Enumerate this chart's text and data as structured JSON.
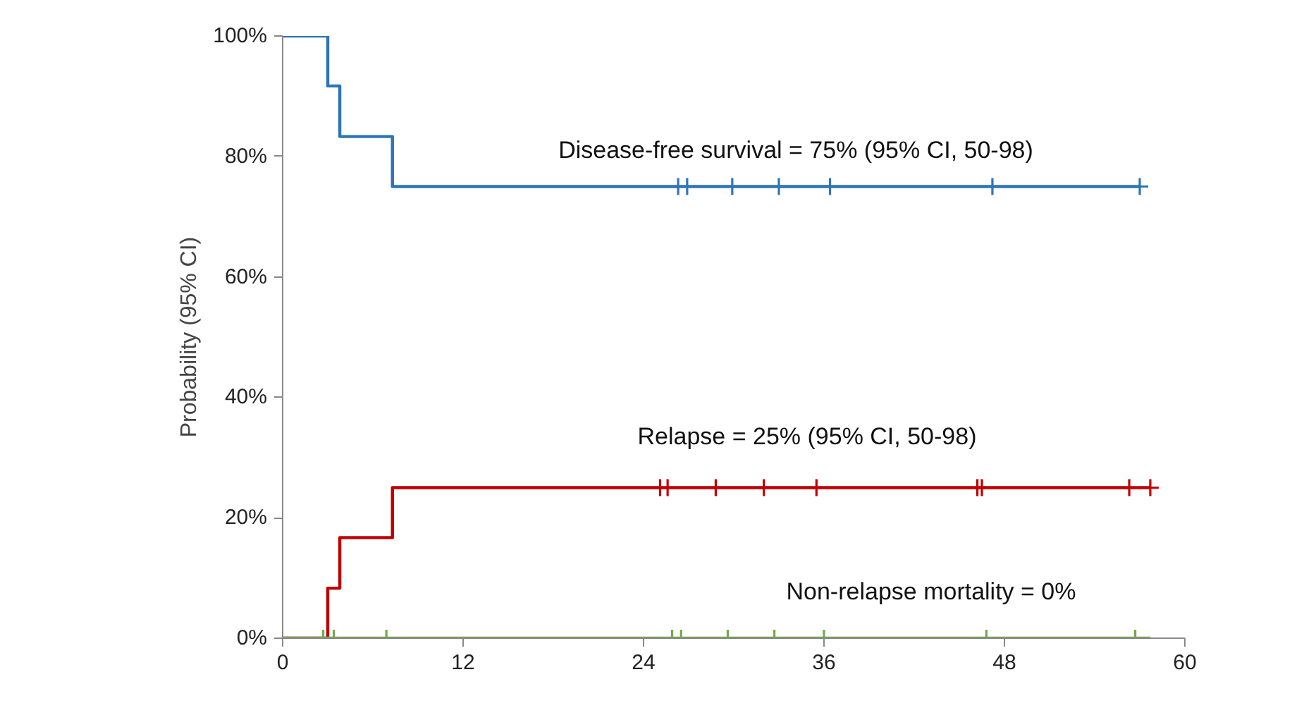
{
  "chart_data": {
    "type": "step",
    "ylabel": "Probability (95% CI)",
    "xlim": [
      0,
      60
    ],
    "ylim": [
      0,
      100
    ],
    "xticks": [
      0,
      12,
      24,
      36,
      48,
      60
    ],
    "yticks": [
      {
        "value": 0,
        "label": "0%"
      },
      {
        "value": 20,
        "label": "20%"
      },
      {
        "value": 40,
        "label": "40%"
      },
      {
        "value": 60,
        "label": "60%"
      },
      {
        "value": 80,
        "label": "80%"
      },
      {
        "value": 100,
        "label": "100%"
      }
    ],
    "grid": false,
    "series": [
      {
        "color": "#2e75b6",
        "x": [
          0,
          3,
          3.8,
          7.3,
          57.0
        ],
        "values": [
          100,
          91.7,
          83.3,
          75,
          75
        ]
      },
      {
        "color": "#c00000",
        "x": [
          0,
          3,
          3.8,
          7.3,
          57.7
        ],
        "values": [
          0,
          8.3,
          16.7,
          25,
          25
        ]
      },
      {
        "color": "#70ad47",
        "x": [
          0,
          57.7
        ],
        "values": [
          0,
          0
        ]
      },
      {
        "type": "scatter",
        "marker": "cross",
        "color": "#2e75b6",
        "x": [
          26.3,
          26.9,
          29.9,
          33.0,
          36.4,
          47.2,
          57.0
        ],
        "values": [
          75,
          75,
          75,
          75,
          75,
          75,
          75
        ]
      },
      {
        "type": "scatter",
        "marker": "cross",
        "color": "#c00000",
        "x": [
          25.1,
          25.6,
          28.8,
          32.0,
          35.5,
          46.2,
          46.5,
          56.3,
          57.7
        ],
        "values": [
          25,
          25,
          25,
          25,
          25,
          25,
          25,
          25,
          25
        ]
      },
      {
        "type": "scatter",
        "marker": "cross",
        "color": "#70ad47",
        "x": [
          2.7,
          3.4,
          6.9,
          25.9,
          26.5,
          29.6,
          32.7,
          36.0,
          46.8,
          56.7
        ],
        "values": [
          0,
          0,
          0,
          0,
          0,
          0,
          0,
          0,
          0,
          0
        ]
      }
    ],
    "annotations": [
      "Disease-free survival = 75% (95% CI, 50-98)",
      "Relapse = 25% (95% CI, 50-98)",
      "Non-relapse mortality = 0%"
    ]
  }
}
